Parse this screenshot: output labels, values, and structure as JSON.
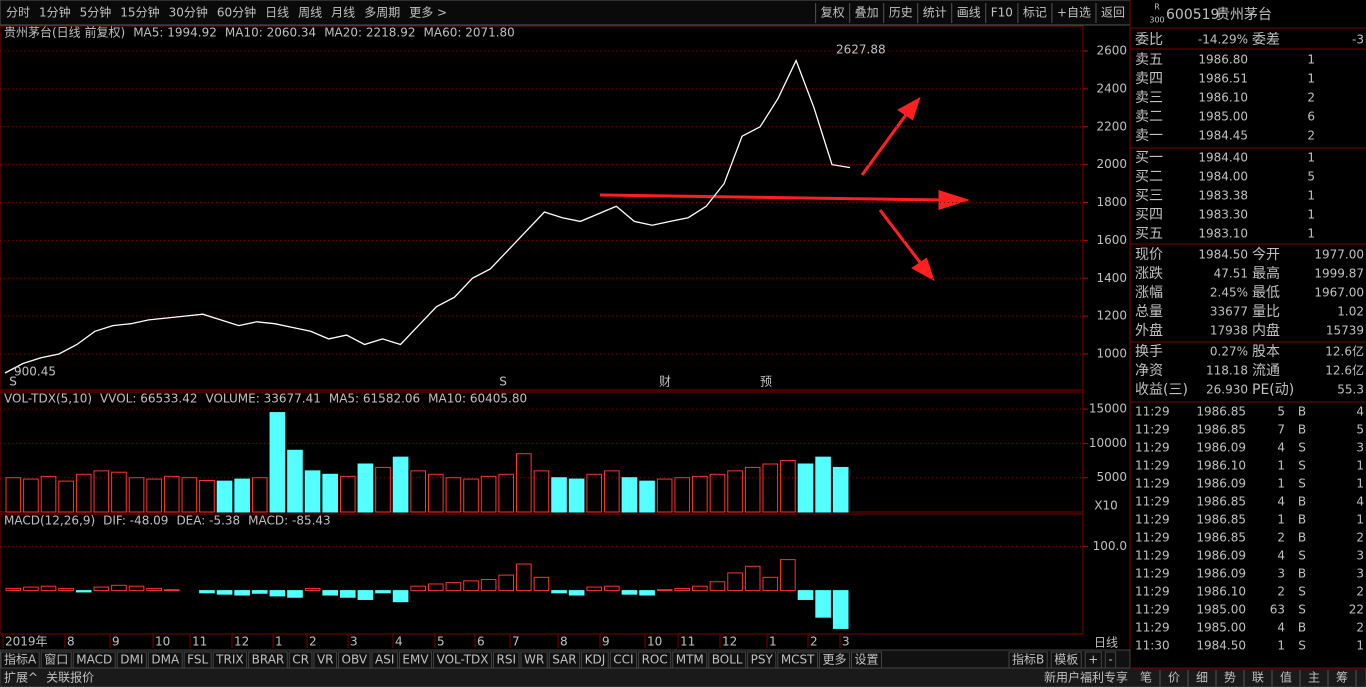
{
  "toolbar": {
    "periods": [
      "分时",
      "1分钟",
      "5分钟",
      "15分钟",
      "30分钟",
      "60分钟",
      "日线",
      "周线",
      "月线",
      "多周期",
      "更多 >"
    ],
    "tools": [
      "复权",
      "叠加",
      "历史",
      "统计",
      "画线",
      "F10",
      "标记",
      "+自选",
      "返回"
    ]
  },
  "price_chart": {
    "type": "line",
    "title": "贵州茅台(日线 前复权)",
    "indicators": [
      "MA5: 1994.92",
      "MA10: 2060.34",
      "MA20: 2218.92",
      "MA60: 2071.80"
    ],
    "values": [
      900,
      950,
      980,
      1000,
      1050,
      1120,
      1150,
      1160,
      1180,
      1190,
      1200,
      1210,
      1180,
      1150,
      1170,
      1160,
      1140,
      1120,
      1080,
      1100,
      1050,
      1080,
      1050,
      1150,
      1250,
      1300,
      1400,
      1450,
      1550,
      1650,
      1750,
      1720,
      1700,
      1740,
      1780,
      1700,
      1680,
      1700,
      1720,
      1780,
      1900,
      2150,
      2200,
      2350,
      2550,
      2300,
      2000,
      1984.5
    ],
    "ylim": [
      810,
      2732
    ],
    "yticks": [
      1000,
      1200,
      1400,
      1600,
      1800,
      2000,
      2200,
      2400,
      2600
    ],
    "high_label": "2627.88",
    "low_label": "900.45",
    "markers": [
      "S",
      "S",
      "财",
      "预"
    ]
  },
  "volume_chart": {
    "type": "bar",
    "title": "VOL-TDX(5,10)",
    "indicators": [
      "VVOL: 66533.42",
      "VOLUME: 33677.41",
      "MA5: 61582.06",
      "MA10: 60405.80"
    ],
    "values": [
      5000,
      4800,
      5200,
      4500,
      5500,
      6000,
      5800,
      5000,
      4800,
      5200,
      5000,
      4600,
      4500,
      4800,
      5000,
      14500,
      9000,
      6000,
      5500,
      5200,
      7000,
      6500,
      8000,
      6000,
      5500,
      5000,
      4800,
      5200,
      5500,
      8500,
      6000,
      5000,
      4800,
      5500,
      6000,
      5000,
      4500,
      4800,
      5000,
      5200,
      5500,
      6000,
      6500,
      7000,
      7500,
      7000,
      8000,
      6500
    ],
    "ylim": [
      0,
      17500
    ],
    "yticks": [
      5000,
      10000,
      15000
    ],
    "unit": "X10"
  },
  "macd_chart": {
    "type": "bar",
    "title": "MACD(12,26,9)",
    "indicators": [
      "DIF: -48.09",
      "DEA: -5.38",
      "MACD: -85.43"
    ],
    "values": [
      5,
      8,
      10,
      5,
      -3,
      8,
      12,
      10,
      5,
      2,
      0,
      -5,
      -8,
      -10,
      -6,
      -12,
      -15,
      5,
      -10,
      -15,
      -20,
      -5,
      -25,
      10,
      15,
      18,
      22,
      25,
      35,
      60,
      30,
      -5,
      -10,
      8,
      10,
      -8,
      -10,
      2,
      5,
      10,
      20,
      40,
      55,
      30,
      70,
      -20,
      -60,
      -85.43
    ],
    "ylim": [
      -98,
      173
    ],
    "yticks": [
      {
        "value": 100,
        "label": "100.0"
      }
    ]
  },
  "date_axis": {
    "labels": [
      "2019年",
      "8",
      "9",
      "10",
      "11",
      "12",
      "1",
      "2",
      "3",
      "4",
      "5",
      "6",
      "7",
      "8",
      "9",
      "10",
      "11",
      "12",
      "1",
      "2",
      "3"
    ],
    "period": "日线"
  },
  "indicator_tabs": {
    "left": [
      "指标A",
      "窗口",
      "MACD",
      "DMI",
      "DMA",
      "FSL",
      "TRIX",
      "BRAR",
      "CR",
      "VR",
      "OBV",
      "ASI",
      "EMV",
      "VOL-TDX",
      "RSI",
      "WR",
      "SAR",
      "KDJ",
      "CCI",
      "ROC",
      "MTM",
      "BOLL",
      "PSY",
      "MCST",
      "更多",
      "设置"
    ],
    "right": [
      "指标B",
      "模板",
      "+",
      "-"
    ]
  },
  "status_bar": {
    "left": [
      "扩展^",
      "关联报价"
    ],
    "right": "新用户福利专享"
  },
  "quote": {
    "badge_top": "R",
    "badge_bottom": "300",
    "code": "600519",
    "name": "贵州茅台",
    "weibi": [
      "委比",
      "-14.29%",
      "委差",
      "-3"
    ],
    "asks": [
      [
        "卖五",
        "1986.80",
        "1"
      ],
      [
        "卖四",
        "1986.51",
        "1"
      ],
      [
        "卖三",
        "1986.10",
        "2"
      ],
      [
        "卖二",
        "1985.00",
        "6"
      ],
      [
        "卖一",
        "1984.45",
        "2"
      ]
    ],
    "bids": [
      [
        "买一",
        "1984.40",
        "1"
      ],
      [
        "买二",
        "1984.00",
        "5"
      ],
      [
        "买三",
        "1983.38",
        "1"
      ],
      [
        "买四",
        "1983.30",
        "1"
      ],
      [
        "买五",
        "1983.10",
        "1"
      ]
    ],
    "stats": [
      [
        "现价",
        "1984.50",
        "今开",
        "1977.00"
      ],
      [
        "涨跌",
        "47.51",
        "最高",
        "1999.87"
      ],
      [
        "涨幅",
        "2.45%",
        "最低",
        "1967.00"
      ],
      [
        "总量",
        "33677",
        "量比",
        "1.02"
      ],
      [
        "外盘",
        "17938",
        "内盘",
        "15739"
      ],
      [
        "换手",
        "0.27%",
        "股本",
        "12.6亿"
      ],
      [
        "净资",
        "118.18",
        "流通",
        "12.6亿"
      ],
      [
        "收益(三)",
        "26.930",
        "PE(动)",
        "55.3"
      ]
    ],
    "ticks": [
      [
        "11:29",
        "1986.85",
        "5",
        "B",
        "4"
      ],
      [
        "11:29",
        "1986.85",
        "7",
        "B",
        "5"
      ],
      [
        "11:29",
        "1986.09",
        "4",
        "S",
        "3"
      ],
      [
        "11:29",
        "1986.10",
        "1",
        "S",
        "1"
      ],
      [
        "11:29",
        "1986.09",
        "1",
        "S",
        "1"
      ],
      [
        "11:29",
        "1986.85",
        "4",
        "B",
        "4"
      ],
      [
        "11:29",
        "1986.85",
        "1",
        "B",
        "1"
      ],
      [
        "11:29",
        "1986.85",
        "2",
        "B",
        "2"
      ],
      [
        "11:29",
        "1986.09",
        "4",
        "S",
        "3"
      ],
      [
        "11:29",
        "1986.09",
        "3",
        "B",
        "3"
      ],
      [
        "11:29",
        "1986.10",
        "2",
        "S",
        "2"
      ],
      [
        "11:29",
        "1985.00",
        "63",
        "S",
        "22"
      ],
      [
        "11:29",
        "1985.00",
        "4",
        "B",
        "2"
      ],
      [
        "11:30",
        "1984.50",
        "1",
        "S",
        "1"
      ]
    ],
    "tabs": [
      "笔",
      "价",
      "细",
      "势",
      "联",
      "值",
      "主",
      "筹"
    ]
  }
}
